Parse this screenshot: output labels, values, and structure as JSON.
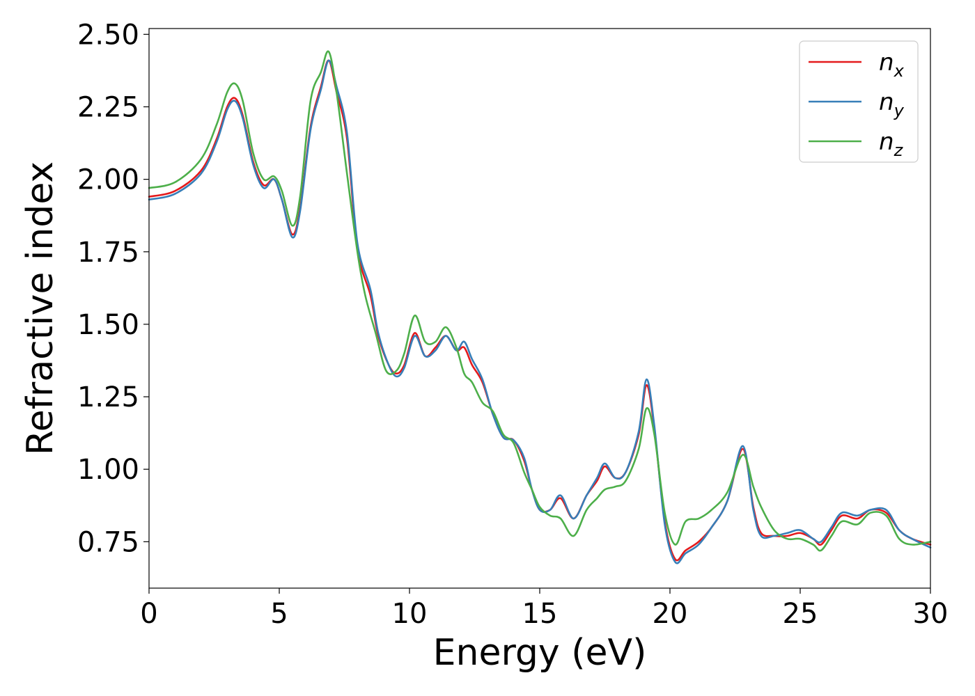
{
  "chart_data": {
    "type": "line",
    "title": "",
    "xlabel": "Energy (eV)",
    "ylabel": "Refractive index",
    "xlim": [
      0,
      30
    ],
    "ylim": [
      0.59,
      2.52
    ],
    "xticks": [
      0,
      5,
      10,
      15,
      20,
      25,
      30
    ],
    "xtick_labels": [
      "0",
      "5",
      "10",
      "15",
      "20",
      "25",
      "30"
    ],
    "yticks": [
      0.75,
      1.0,
      1.25,
      1.5,
      1.75,
      2.0,
      2.25,
      2.5
    ],
    "ytick_labels": [
      "0.75",
      "1.00",
      "1.25",
      "1.50",
      "1.75",
      "2.00",
      "2.25",
      "2.50"
    ],
    "grid": false,
    "legend_position": "top-right",
    "series": [
      {
        "name": "n_x",
        "label_main": "n",
        "label_sub": "x",
        "color": "#e41a1c",
        "points": [
          [
            0,
            1.94
          ],
          [
            1,
            1.96
          ],
          [
            2,
            2.03
          ],
          [
            2.6,
            2.14
          ],
          [
            3,
            2.25
          ],
          [
            3.3,
            2.28
          ],
          [
            3.6,
            2.22
          ],
          [
            4,
            2.06
          ],
          [
            4.4,
            1.98
          ],
          [
            4.8,
            2.0
          ],
          [
            5.1,
            1.93
          ],
          [
            5.5,
            1.81
          ],
          [
            5.8,
            1.9
          ],
          [
            6.2,
            2.18
          ],
          [
            6.6,
            2.32
          ],
          [
            6.9,
            2.41
          ],
          [
            7.2,
            2.3
          ],
          [
            7.6,
            2.14
          ],
          [
            8,
            1.76
          ],
          [
            8.5,
            1.6
          ],
          [
            8.8,
            1.46
          ],
          [
            9.2,
            1.36
          ],
          [
            9.5,
            1.33
          ],
          [
            9.8,
            1.36
          ],
          [
            10.2,
            1.47
          ],
          [
            10.6,
            1.39
          ],
          [
            11,
            1.42
          ],
          [
            11.4,
            1.46
          ],
          [
            11.8,
            1.41
          ],
          [
            12.1,
            1.42
          ],
          [
            12.4,
            1.36
          ],
          [
            12.8,
            1.3
          ],
          [
            13.2,
            1.19
          ],
          [
            13.6,
            1.11
          ],
          [
            14,
            1.1
          ],
          [
            14.4,
            1.03
          ],
          [
            14.7,
            0.93
          ],
          [
            15,
            0.86
          ],
          [
            15.4,
            0.86
          ],
          [
            15.8,
            0.9
          ],
          [
            16.3,
            0.83
          ],
          [
            16.8,
            0.91
          ],
          [
            17.2,
            0.96
          ],
          [
            17.5,
            1.01
          ],
          [
            17.9,
            0.97
          ],
          [
            18.3,
            0.99
          ],
          [
            18.8,
            1.12
          ],
          [
            19.1,
            1.29
          ],
          [
            19.4,
            1.14
          ],
          [
            19.8,
            0.82
          ],
          [
            20.2,
            0.69
          ],
          [
            20.6,
            0.72
          ],
          [
            21.1,
            0.75
          ],
          [
            21.6,
            0.8
          ],
          [
            22.2,
            0.89
          ],
          [
            22.8,
            1.07
          ],
          [
            23.2,
            0.87
          ],
          [
            23.5,
            0.78
          ],
          [
            24,
            0.77
          ],
          [
            24.5,
            0.77
          ],
          [
            25,
            0.78
          ],
          [
            25.5,
            0.76
          ],
          [
            25.8,
            0.74
          ],
          [
            26.2,
            0.79
          ],
          [
            26.6,
            0.84
          ],
          [
            27.2,
            0.83
          ],
          [
            27.7,
            0.86
          ],
          [
            28.3,
            0.85
          ],
          [
            28.8,
            0.79
          ],
          [
            29.3,
            0.76
          ],
          [
            30,
            0.74
          ]
        ]
      },
      {
        "name": "n_y",
        "label_main": "n",
        "label_sub": "y",
        "color": "#377eb8",
        "points": [
          [
            0,
            1.93
          ],
          [
            1,
            1.95
          ],
          [
            2,
            2.02
          ],
          [
            2.6,
            2.13
          ],
          [
            3,
            2.24
          ],
          [
            3.3,
            2.27
          ],
          [
            3.6,
            2.21
          ],
          [
            4,
            2.05
          ],
          [
            4.4,
            1.97
          ],
          [
            4.8,
            2.0
          ],
          [
            5.1,
            1.93
          ],
          [
            5.5,
            1.8
          ],
          [
            5.8,
            1.89
          ],
          [
            6.2,
            2.17
          ],
          [
            6.6,
            2.31
          ],
          [
            6.9,
            2.41
          ],
          [
            7.2,
            2.32
          ],
          [
            7.6,
            2.16
          ],
          [
            8,
            1.78
          ],
          [
            8.5,
            1.62
          ],
          [
            8.8,
            1.47
          ],
          [
            9.2,
            1.36
          ],
          [
            9.5,
            1.32
          ],
          [
            9.8,
            1.35
          ],
          [
            10.2,
            1.46
          ],
          [
            10.6,
            1.39
          ],
          [
            11,
            1.41
          ],
          [
            11.4,
            1.46
          ],
          [
            11.8,
            1.41
          ],
          [
            12.1,
            1.44
          ],
          [
            12.4,
            1.38
          ],
          [
            12.8,
            1.31
          ],
          [
            13.2,
            1.19
          ],
          [
            13.6,
            1.11
          ],
          [
            14,
            1.1
          ],
          [
            14.4,
            1.04
          ],
          [
            14.7,
            0.93
          ],
          [
            15,
            0.86
          ],
          [
            15.4,
            0.86
          ],
          [
            15.8,
            0.91
          ],
          [
            16.3,
            0.83
          ],
          [
            16.8,
            0.91
          ],
          [
            17.2,
            0.97
          ],
          [
            17.5,
            1.02
          ],
          [
            17.9,
            0.97
          ],
          [
            18.3,
            0.99
          ],
          [
            18.8,
            1.13
          ],
          [
            19.1,
            1.31
          ],
          [
            19.4,
            1.15
          ],
          [
            19.8,
            0.81
          ],
          [
            20.2,
            0.68
          ],
          [
            20.6,
            0.71
          ],
          [
            21.1,
            0.74
          ],
          [
            21.6,
            0.8
          ],
          [
            22.2,
            0.89
          ],
          [
            22.8,
            1.08
          ],
          [
            23.2,
            0.86
          ],
          [
            23.5,
            0.77
          ],
          [
            24,
            0.77
          ],
          [
            24.5,
            0.78
          ],
          [
            25,
            0.79
          ],
          [
            25.5,
            0.76
          ],
          [
            25.8,
            0.75
          ],
          [
            26.2,
            0.8
          ],
          [
            26.6,
            0.85
          ],
          [
            27.2,
            0.84
          ],
          [
            27.7,
            0.86
          ],
          [
            28.3,
            0.86
          ],
          [
            28.8,
            0.79
          ],
          [
            29.3,
            0.76
          ],
          [
            30,
            0.73
          ]
        ]
      },
      {
        "name": "n_z",
        "label_main": "n",
        "label_sub": "z",
        "color": "#4daf4a",
        "points": [
          [
            0,
            1.97
          ],
          [
            1,
            1.99
          ],
          [
            2,
            2.07
          ],
          [
            2.6,
            2.19
          ],
          [
            3,
            2.3
          ],
          [
            3.3,
            2.33
          ],
          [
            3.6,
            2.27
          ],
          [
            4,
            2.09
          ],
          [
            4.4,
            2.0
          ],
          [
            4.8,
            2.01
          ],
          [
            5.1,
            1.96
          ],
          [
            5.5,
            1.84
          ],
          [
            5.8,
            1.94
          ],
          [
            6.2,
            2.27
          ],
          [
            6.6,
            2.37
          ],
          [
            6.9,
            2.44
          ],
          [
            7.2,
            2.3
          ],
          [
            7.6,
            2.02
          ],
          [
            8,
            1.75
          ],
          [
            8.3,
            1.6
          ],
          [
            8.7,
            1.47
          ],
          [
            9.1,
            1.34
          ],
          [
            9.5,
            1.34
          ],
          [
            9.8,
            1.4
          ],
          [
            10.2,
            1.53
          ],
          [
            10.6,
            1.44
          ],
          [
            11,
            1.44
          ],
          [
            11.4,
            1.49
          ],
          [
            11.8,
            1.42
          ],
          [
            12.1,
            1.33
          ],
          [
            12.4,
            1.3
          ],
          [
            12.8,
            1.23
          ],
          [
            13.2,
            1.2
          ],
          [
            13.6,
            1.12
          ],
          [
            14,
            1.09
          ],
          [
            14.4,
            0.99
          ],
          [
            14.7,
            0.93
          ],
          [
            15,
            0.87
          ],
          [
            15.4,
            0.84
          ],
          [
            15.8,
            0.83
          ],
          [
            16.3,
            0.77
          ],
          [
            16.8,
            0.86
          ],
          [
            17.2,
            0.9
          ],
          [
            17.5,
            0.93
          ],
          [
            17.9,
            0.94
          ],
          [
            18.3,
            0.96
          ],
          [
            18.8,
            1.07
          ],
          [
            19.1,
            1.21
          ],
          [
            19.4,
            1.12
          ],
          [
            19.8,
            0.85
          ],
          [
            20.2,
            0.74
          ],
          [
            20.6,
            0.82
          ],
          [
            21.1,
            0.83
          ],
          [
            21.6,
            0.86
          ],
          [
            22.2,
            0.92
          ],
          [
            22.8,
            1.05
          ],
          [
            23.2,
            0.94
          ],
          [
            23.5,
            0.87
          ],
          [
            24,
            0.79
          ],
          [
            24.5,
            0.76
          ],
          [
            25,
            0.76
          ],
          [
            25.5,
            0.74
          ],
          [
            25.8,
            0.72
          ],
          [
            26.2,
            0.77
          ],
          [
            26.6,
            0.82
          ],
          [
            27.2,
            0.81
          ],
          [
            27.7,
            0.85
          ],
          [
            28.3,
            0.84
          ],
          [
            28.8,
            0.76
          ],
          [
            29.3,
            0.74
          ],
          [
            30,
            0.75
          ]
        ]
      }
    ]
  }
}
